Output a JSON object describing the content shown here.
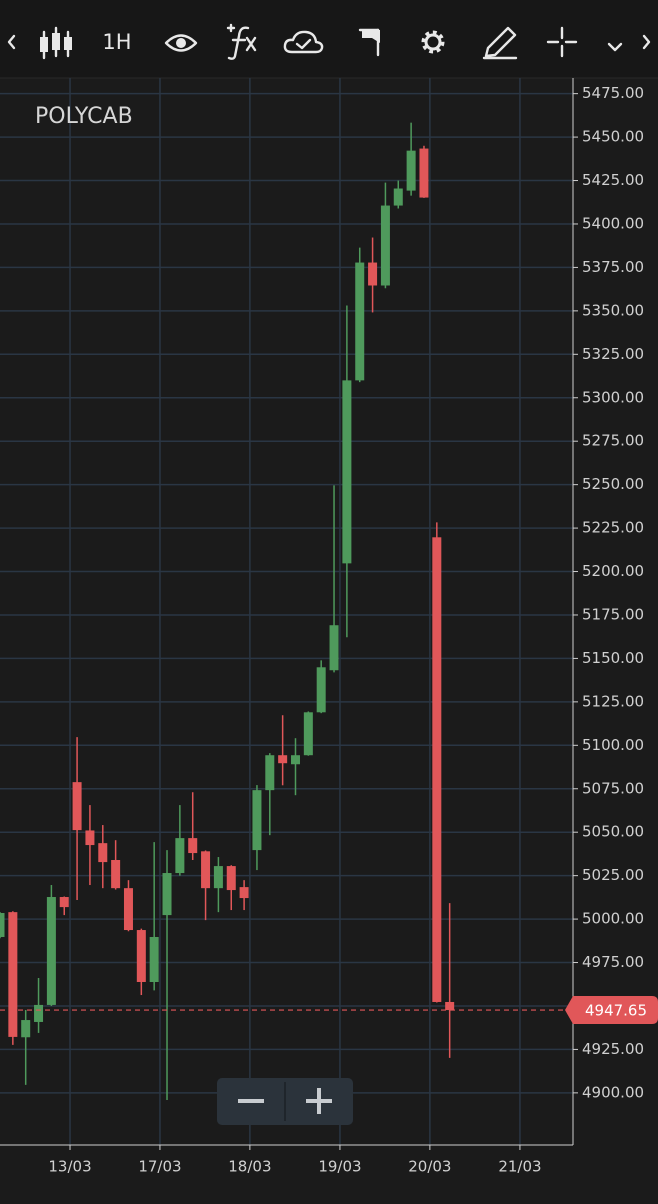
{
  "toolbar": {
    "interval": "1H"
  },
  "chart_data": {
    "type": "candlestick",
    "title": "POLYCAB",
    "x": [
      0,
      1,
      2,
      3,
      4,
      5,
      6,
      7,
      8,
      9,
      10,
      11,
      12,
      13,
      14,
      15,
      16,
      17,
      18,
      19,
      20,
      21,
      22,
      23,
      24,
      25,
      26,
      27,
      28,
      29,
      30,
      31,
      32,
      33,
      34,
      35
    ],
    "open": [
      4989.7,
      5004,
      4932,
      4940.8,
      4950.6,
      5012.7,
      5078.8,
      5051,
      5043.7,
      5034,
      5017.8,
      4993.7,
      4963.8,
      5002.3,
      5026.5,
      5046.6,
      5039,
      5017.8,
      5030.5,
      5018.4,
      5039.7,
      5074.2,
      5094.3,
      5089.1,
      5094.3,
      5119,
      5143.2,
      5204.7,
      5310,
      5377.8,
      5364.6,
      5410.6,
      5419.2,
      5443.4,
      5219.7,
      4952.3
    ],
    "high": [
      5004,
      5004.5,
      4947.7,
      4966.1,
      5019.6,
      5013,
      5104.7,
      5065.6,
      5054.1,
      5045.4,
      5022.4,
      4994.5,
      5044.3,
      5039.7,
      5065.6,
      5073,
      5039.5,
      5035.7,
      5031,
      5022.4,
      5077.1,
      5095.5,
      5117.3,
      5104.1,
      5119.5,
      5148.9,
      5249.6,
      5353.1,
      5386.4,
      5392.2,
      5423.8,
      5425,
      5458.3,
      5445,
      5228.3,
      5009.2
    ],
    "low": [
      4989,
      4927.6,
      4904.6,
      4934.5,
      4950,
      5002.3,
      5011,
      5019.6,
      5017.8,
      5017,
      4993,
      4956.3,
      4959,
      4895.9,
      5025,
      5034,
      4999.4,
      5004,
      5005.2,
      5005.2,
      5028.2,
      5048.3,
      5077,
      5071.3,
      5094,
      5118.5,
      5142,
      5162.2,
      5309,
      5349.1,
      5363,
      5408.9,
      5416.3,
      5415,
      4952,
      4920.1
    ],
    "close": [
      5003.5,
      4932.2,
      4941.9,
      4950.6,
      5012.7,
      5006.9,
      5051.2,
      5042.6,
      5032.8,
      5017.8,
      4993.7,
      4963.8,
      4989.7,
      5026.5,
      5046.6,
      5038,
      5017.8,
      5030.5,
      5016.7,
      5012.1,
      5074.2,
      5094.3,
      5089.7,
      5094.3,
      5119,
      5144.9,
      5169.1,
      5310,
      5377.8,
      5364.6,
      5410.6,
      5420.4,
      5442.2,
      5415.2,
      4952.3,
      4947.65
    ],
    "up_color": "#4f9a5c",
    "down_color": "#e15759",
    "grid": true,
    "xlim": [
      0,
      44.6
    ],
    "xticks": [
      {
        "value": 5.45,
        "label": "13/03"
      },
      {
        "value": 12.45,
        "label": "17/03"
      },
      {
        "value": 19.45,
        "label": "18/03"
      },
      {
        "value": 26.46,
        "label": "19/03"
      },
      {
        "value": 33.46,
        "label": "20/03"
      },
      {
        "value": 40.47,
        "label": "21/03"
      }
    ],
    "ylim": [
      4870,
      5484
    ],
    "yticks": [
      {
        "value": 4900,
        "label": "4900.00"
      },
      {
        "value": 4925,
        "label": "4925.00"
      },
      {
        "value": 4950,
        "label": "4950.00"
      },
      {
        "value": 4975,
        "label": "4975.00"
      },
      {
        "value": 5000,
        "label": "5000.00"
      },
      {
        "value": 5025,
        "label": "5025.00"
      },
      {
        "value": 5050,
        "label": "5050.00"
      },
      {
        "value": 5075,
        "label": "5075.00"
      },
      {
        "value": 5100,
        "label": "5100.00"
      },
      {
        "value": 5125,
        "label": "5125.00"
      },
      {
        "value": 5150,
        "label": "5150.00"
      },
      {
        "value": 5175,
        "label": "5175.00"
      },
      {
        "value": 5200,
        "label": "5200.00"
      },
      {
        "value": 5225,
        "label": "5225.00"
      },
      {
        "value": 5250,
        "label": "5250.00"
      },
      {
        "value": 5275,
        "label": "5275.00"
      },
      {
        "value": 5300,
        "label": "5300.00"
      },
      {
        "value": 5325,
        "label": "5325.00"
      },
      {
        "value": 5350,
        "label": "5350.00"
      },
      {
        "value": 5375,
        "label": "5375.00"
      },
      {
        "value": 5400,
        "label": "5400.00"
      },
      {
        "value": 5425,
        "label": "5425.00"
      },
      {
        "value": 5450,
        "label": "5450.00"
      },
      {
        "value": 5475,
        "label": "5475.00"
      }
    ]
  }
}
